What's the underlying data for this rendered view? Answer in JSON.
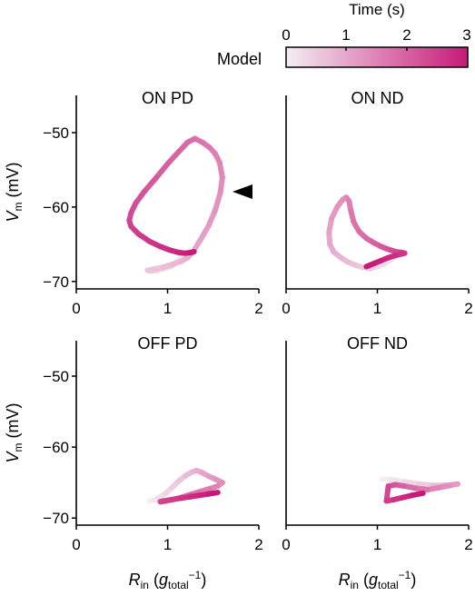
{
  "colorbar": {
    "title": "Time (s)",
    "label": "Model",
    "ticks": [
      "0",
      "1",
      "2",
      "3"
    ],
    "range": [
      0,
      3
    ],
    "color_start": "#f4eef3",
    "color_end": "#c71a78"
  },
  "chart_data": [
    {
      "type": "line",
      "panel": "top-left",
      "title": "ON PD",
      "ylabel": "Vm (mV)",
      "xlabel": "",
      "xlim": [
        0,
        2
      ],
      "ylim": [
        -71,
        -45
      ],
      "xticks": [
        "0",
        "1",
        "2"
      ],
      "yticks": [
        "−50",
        "−60",
        "−70"
      ],
      "annotation": "arrowhead pointing to trajectory near Vm = −58 mV",
      "series": [
        {
          "x": [
            1.25,
            1.2,
            1.15,
            1.1,
            1.05,
            0.95,
            0.88,
            0.82,
            0.78,
            0.95,
            1.05,
            1.15,
            1.22,
            1.28,
            1.32,
            1.38,
            1.45,
            1.52,
            1.58,
            1.6,
            1.57,
            1.52,
            1.46,
            1.38,
            1.3,
            1.22,
            1.12,
            1.0,
            0.88,
            0.74,
            0.65,
            0.6,
            0.58,
            0.6,
            0.68,
            0.8,
            0.92,
            1.03,
            1.12,
            1.19,
            1.26,
            1.29
          ],
          "y": [
            -66.0,
            -66.3,
            -66.8,
            -67.4,
            -67.9,
            -68.3,
            -68.5,
            -68.6,
            -68.5,
            -68.1,
            -67.7,
            -67.3,
            -66.8,
            -66.0,
            -65.2,
            -64.0,
            -62.5,
            -60.5,
            -58.0,
            -56.0,
            -54.0,
            -52.8,
            -52.0,
            -51.3,
            -50.8,
            -51.3,
            -52.6,
            -54.2,
            -56.0,
            -58.0,
            -59.5,
            -60.8,
            -61.8,
            -62.6,
            -63.6,
            -64.6,
            -65.3,
            -65.8,
            -66.1,
            -66.2,
            -66.1,
            -66.0
          ]
        }
      ]
    },
    {
      "type": "line",
      "panel": "top-right",
      "title": "ON ND",
      "ylabel": "",
      "xlabel": "",
      "xlim": [
        0,
        2
      ],
      "ylim": [
        -71,
        -45
      ],
      "xticks": [
        "0",
        "1",
        "2"
      ],
      "yticks": [],
      "series": [
        {
          "x": [
            1.28,
            1.22,
            1.16,
            1.08,
            1.0,
            0.92,
            0.84,
            0.76,
            0.68,
            0.6,
            0.52,
            0.48,
            0.47,
            0.5,
            0.56,
            0.62,
            0.66,
            0.69,
            0.71,
            0.74,
            0.8,
            0.88,
            0.96,
            1.04,
            1.1,
            1.15,
            1.2,
            1.26,
            1.3,
            1.27,
            1.2,
            1.12,
            1.04,
            0.96,
            0.88
          ],
          "y": [
            -66.0,
            -66.4,
            -67.0,
            -67.6,
            -68.0,
            -68.3,
            -68.1,
            -67.8,
            -67.4,
            -66.8,
            -66.0,
            -65.0,
            -63.4,
            -61.5,
            -60.0,
            -59.0,
            -58.7,
            -59.2,
            -60.5,
            -62.0,
            -63.3,
            -64.2,
            -64.8,
            -65.3,
            -65.6,
            -65.8,
            -66.0,
            -66.1,
            -66.2,
            -66.3,
            -66.5,
            -66.8,
            -67.2,
            -67.6,
            -68.0
          ]
        }
      ]
    },
    {
      "type": "line",
      "panel": "bottom-left",
      "title": "OFF PD",
      "ylabel": "Vm (mV)",
      "xlabel": "Rin (gtotal−1)",
      "xlim": [
        0,
        2
      ],
      "ylim": [
        -71,
        -45
      ],
      "xticks": [
        "0",
        "1",
        "2"
      ],
      "yticks": [
        "−50",
        "−60",
        "−70"
      ],
      "series": [
        {
          "x": [
            0.8,
            0.85,
            0.9,
            0.98,
            1.05,
            1.12,
            1.2,
            1.27,
            1.32,
            1.38,
            1.45,
            1.52,
            1.6,
            1.55,
            1.45,
            1.35,
            1.25,
            1.15,
            1.05,
            0.98,
            0.92,
            0.95,
            1.05,
            1.15,
            1.25,
            1.35,
            1.45,
            1.55
          ],
          "y": [
            -67.6,
            -67.5,
            -67.2,
            -66.5,
            -65.7,
            -64.8,
            -64.0,
            -63.5,
            -63.3,
            -63.6,
            -64.1,
            -64.5,
            -65.0,
            -65.5,
            -65.9,
            -66.3,
            -66.7,
            -67.1,
            -67.4,
            -67.6,
            -67.7,
            -67.6,
            -67.4,
            -67.2,
            -67.0,
            -66.8,
            -66.6,
            -66.4
          ]
        }
      ]
    },
    {
      "type": "line",
      "panel": "bottom-right",
      "title": "OFF ND",
      "ylabel": "",
      "xlabel": "Rin (gtotal−1)",
      "xlim": [
        0,
        2
      ],
      "ylim": [
        -71,
        -45
      ],
      "xticks": [
        "0",
        "1",
        "2"
      ],
      "yticks": [],
      "series": [
        {
          "x": [
            1.05,
            1.15,
            1.3,
            1.45,
            1.6,
            1.72,
            1.82,
            1.88,
            1.8,
            1.68,
            1.55,
            1.42,
            1.3,
            1.2,
            1.12,
            1.1,
            1.18,
            1.28,
            1.38,
            1.5
          ],
          "y": [
            -64.5,
            -64.6,
            -64.9,
            -65.2,
            -65.4,
            -65.4,
            -65.3,
            -65.2,
            -65.4,
            -65.7,
            -66.0,
            -65.8,
            -65.5,
            -65.3,
            -65.5,
            -67.6,
            -67.4,
            -67.1,
            -66.8,
            -66.5
          ]
        }
      ]
    }
  ]
}
